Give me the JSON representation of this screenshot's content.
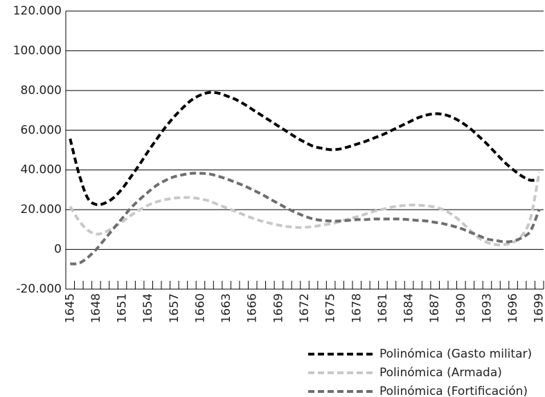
{
  "chart_data": {
    "type": "line",
    "categories": [
      "1645",
      null,
      null,
      "1648",
      null,
      null,
      "1651",
      null,
      null,
      "1654",
      null,
      null,
      "1657",
      null,
      null,
      "1660",
      null,
      null,
      "1663",
      null,
      null,
      "1666",
      null,
      null,
      "1669",
      null,
      null,
      "1672",
      null,
      null,
      "1675",
      null,
      null,
      "1678",
      null,
      null,
      "1681",
      null,
      null,
      "1684",
      null,
      null,
      "1687",
      null,
      null,
      "1690",
      null,
      null,
      "1693",
      null,
      null,
      "1696",
      null,
      null,
      "1699"
    ],
    "ylim": [
      -20000,
      120000
    ],
    "yticks": [
      {
        "value": -20000,
        "label": "-20.000"
      },
      0,
      {
        "value": 20000,
        "label": "20.000"
      },
      {
        "value": 40000,
        "label": "40.000"
      },
      {
        "value": 60000,
        "label": "60.000"
      },
      {
        "value": 80000,
        "label": "80.000"
      },
      {
        "value": 100000,
        "label": "100.000"
      },
      {
        "value": 120000,
        "label": "120.000"
      }
    ],
    "grid": true,
    "legend": "bottom-right",
    "series": [
      {
        "name": "Polinómica (Gasto militar)",
        "color": "#000000",
        "values": [
          55700,
          38300,
          26000,
          22600,
          23300,
          26000,
          30600,
          36600,
          42800,
          49500,
          55700,
          61700,
          66900,
          71400,
          75300,
          77700,
          79000,
          78700,
          77300,
          75600,
          73200,
          70400,
          67600,
          64800,
          62000,
          59200,
          56400,
          54000,
          51900,
          50900,
          50200,
          50500,
          51600,
          53000,
          54400,
          56100,
          57800,
          59900,
          62000,
          64100,
          66200,
          67600,
          68300,
          67900,
          66500,
          64100,
          61000,
          57100,
          53000,
          48400,
          43900,
          40100,
          36900,
          34800,
          35500
        ]
      },
      {
        "name": "Polinómica (Armada)",
        "color": "#c8c8c8",
        "values": [
          21600,
          14600,
          9800,
          7700,
          8700,
          11100,
          13900,
          17100,
          19900,
          22300,
          24000,
          25100,
          25800,
          26100,
          26100,
          25400,
          24400,
          22600,
          20900,
          19200,
          17400,
          15700,
          14300,
          13200,
          12200,
          11500,
          11100,
          11100,
          11500,
          12200,
          12900,
          13900,
          15300,
          16400,
          17800,
          19200,
          20200,
          21300,
          21900,
          22300,
          22300,
          21900,
          21300,
          19900,
          17400,
          13900,
          9800,
          5900,
          3500,
          2400,
          2400,
          3500,
          7000,
          15700,
          39000
        ]
      },
      {
        "name": "Polinómica (Fortificación)",
        "color": "#6e6e6e",
        "values": [
          -7300,
          -7000,
          -4200,
          0,
          5200,
          10500,
          15700,
          20900,
          25100,
          28900,
          32400,
          34800,
          36600,
          37600,
          38300,
          38300,
          38000,
          36900,
          35500,
          33800,
          32100,
          30000,
          27900,
          25400,
          23000,
          20600,
          18500,
          16700,
          15300,
          14600,
          14300,
          14300,
          14600,
          15000,
          15000,
          15300,
          15300,
          15300,
          15300,
          15000,
          14600,
          14300,
          13600,
          12900,
          11800,
          10500,
          8700,
          7000,
          5200,
          4500,
          3800,
          4200,
          5900,
          9400,
          20200
        ]
      }
    ]
  }
}
